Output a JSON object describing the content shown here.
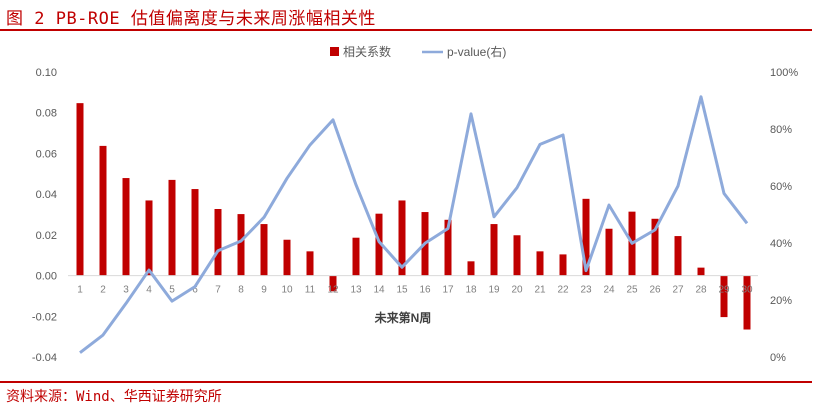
{
  "header": {
    "title": "图 2 PB-ROE 估值偏离度与未来周涨幅相关性"
  },
  "footer": {
    "source": "资料来源：Wind、华西证券研究所"
  },
  "colors": {
    "bar": "#c00000",
    "line": "#8eaadb",
    "accent": "#c00000"
  },
  "chart_data": {
    "type": "bar+line",
    "title": "",
    "xlabel": "未来第N周",
    "ylabel": "",
    "categories": [
      "1",
      "2",
      "3",
      "4",
      "5",
      "6",
      "7",
      "8",
      "9",
      "10",
      "11",
      "12",
      "13",
      "14",
      "15",
      "16",
      "17",
      "18",
      "19",
      "20",
      "21",
      "22",
      "23",
      "24",
      "25",
      "26",
      "27",
      "28",
      "29",
      "30"
    ],
    "ylim": [
      -0.04,
      0.1
    ],
    "y_ticks": [
      "0.10",
      "0.08",
      "0.06",
      "0.04",
      "0.02",
      "0.00",
      "-0.02",
      "-0.04"
    ],
    "y2lim": [
      0,
      100
    ],
    "y2_ticks": [
      "100%",
      "80%",
      "60%",
      "40%",
      "20%",
      "0%"
    ],
    "grid": false,
    "legend_position": "top",
    "series": [
      {
        "name": "相关系数",
        "type": "bar",
        "axis": "left",
        "values": [
          0.0847,
          0.0637,
          0.0479,
          0.0369,
          0.047,
          0.0425,
          0.0327,
          0.0302,
          0.0253,
          0.0176,
          0.0119,
          -0.0077,
          0.0186,
          0.0304,
          0.0369,
          0.0312,
          0.0274,
          0.007,
          0.0253,
          0.0198,
          0.0119,
          0.0104,
          0.0377,
          0.023,
          0.0314,
          0.0279,
          0.0194,
          0.0039,
          -0.0204,
          -0.0265
        ]
      },
      {
        "name": "p-value(右)",
        "type": "line",
        "axis": "right",
        "values": [
          1.5,
          7.7,
          18.8,
          30.5,
          19.6,
          24.7,
          37.3,
          40.7,
          49.0,
          62.7,
          74.4,
          83.2,
          60.4,
          40.5,
          31.5,
          39.9,
          45.1,
          85.3,
          49.2,
          59.4,
          74.6,
          77.9,
          30.3,
          53.3,
          39.9,
          44.6,
          60.0,
          91.3,
          57.4,
          46.9
        ]
      }
    ]
  }
}
